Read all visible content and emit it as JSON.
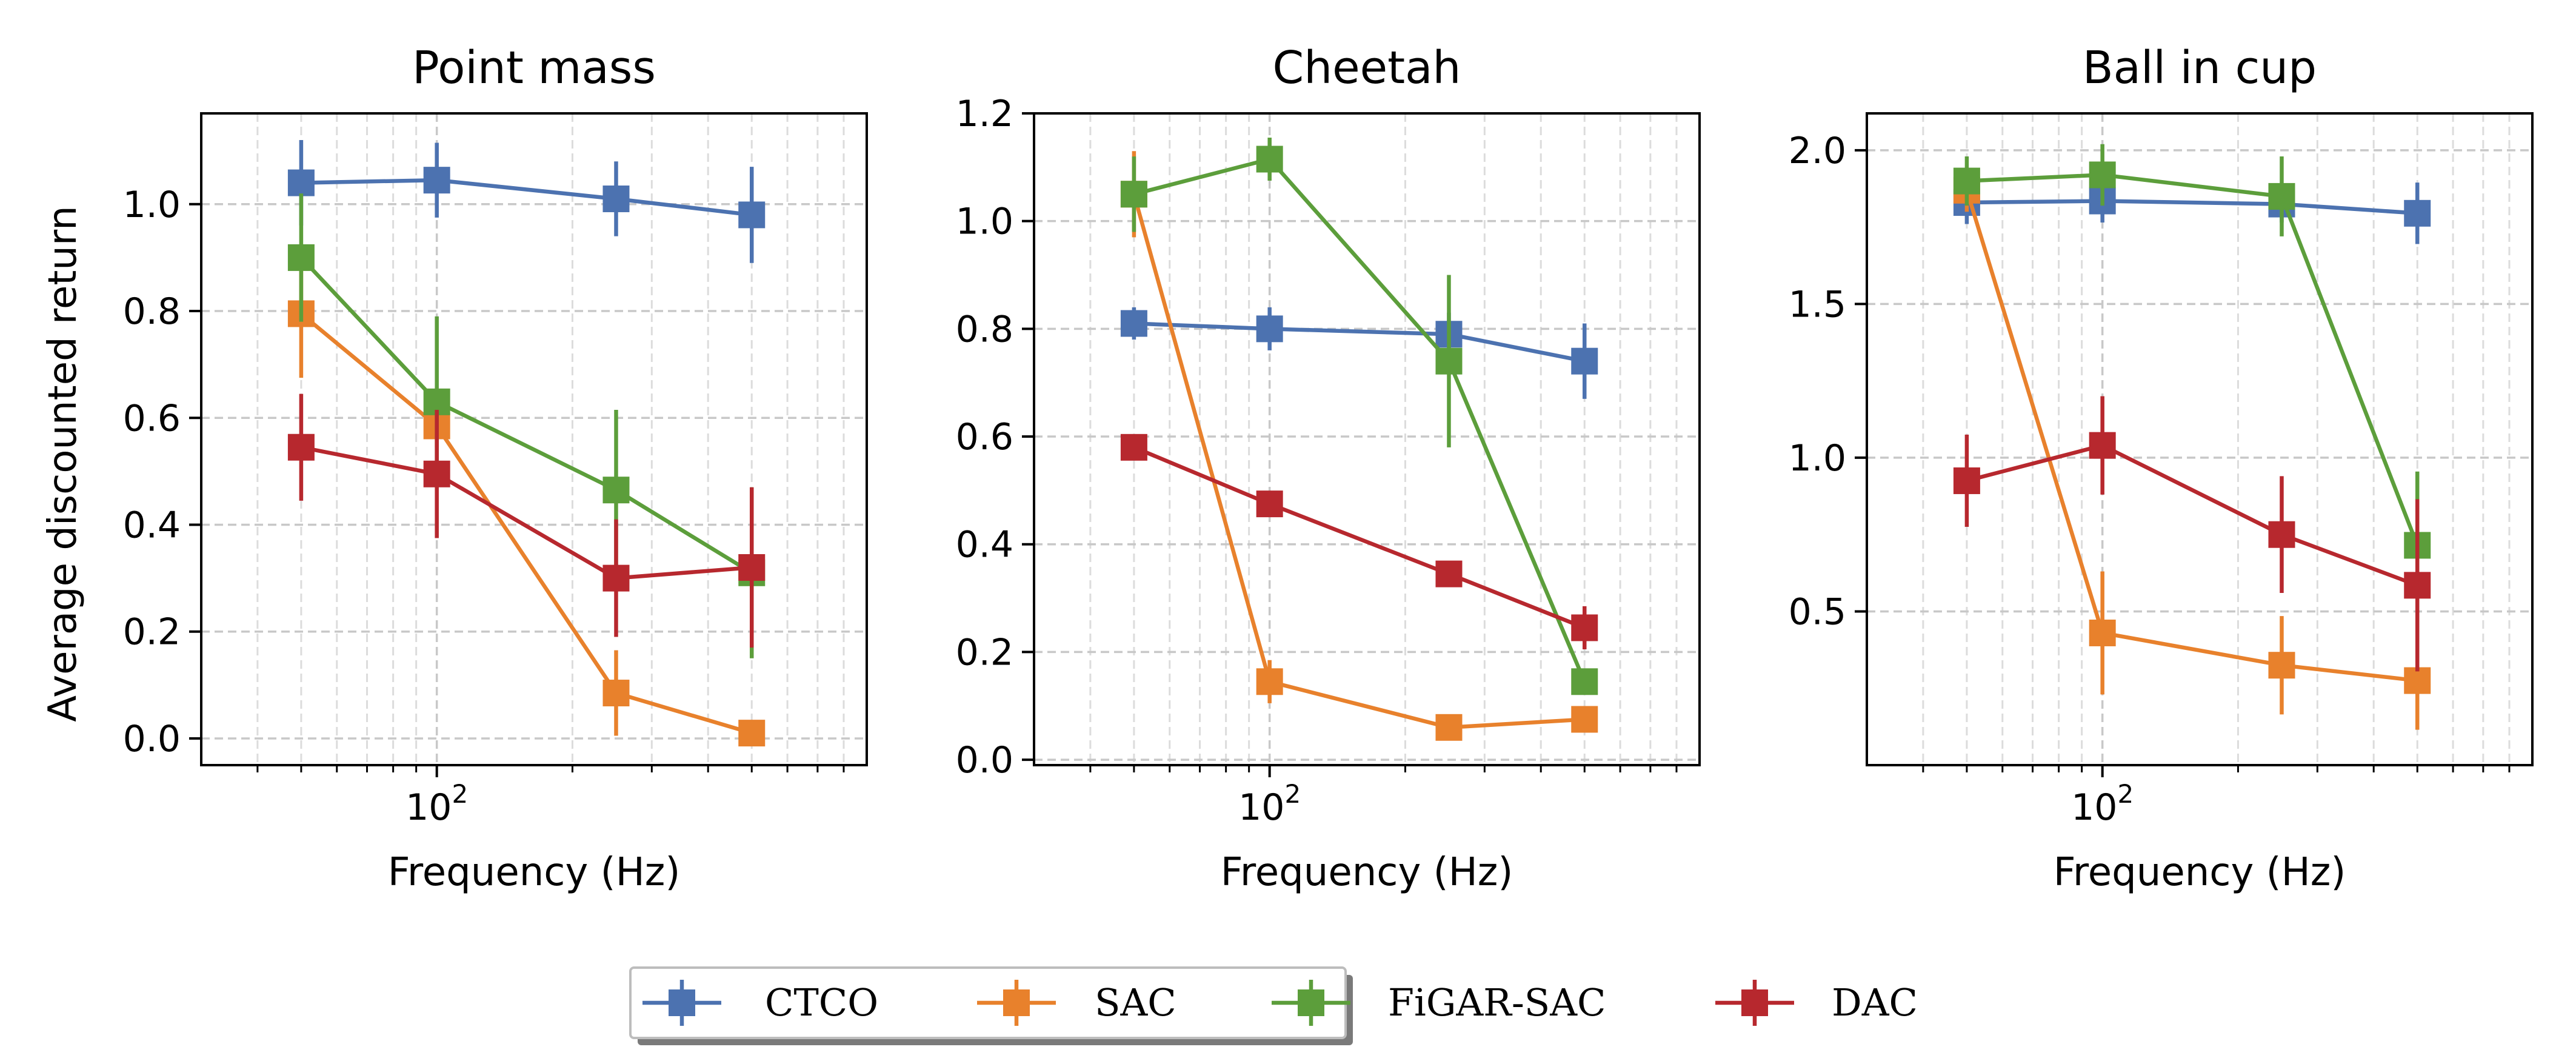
{
  "figure": {
    "ylabel": "Average discounted return"
  },
  "colors": {
    "CTCO": "#4c72b0",
    "SAC": "#e8812c",
    "FiGAR-SAC": "#5c9e3b",
    "DAC": "#b7282e"
  },
  "legend": {
    "placement": "bottom-center",
    "entries": [
      "CTCO",
      "SAC",
      "FiGAR-SAC",
      "DAC"
    ]
  },
  "chart_data": [
    {
      "type": "line",
      "title": "Point mass",
      "xlabel": "Frequency (Hz)",
      "ylabel": "Average discounted return",
      "xscale": "log",
      "xlim": [
        30,
        900
      ],
      "ylim": [
        -0.05,
        1.17
      ],
      "yticks": [
        0.0,
        0.2,
        0.4,
        0.6,
        0.8,
        1.0
      ],
      "ytick_labels": [
        "0.0",
        "0.2",
        "0.4",
        "0.6",
        "0.8",
        "1.0"
      ],
      "xticks": [
        100
      ],
      "xtick_labels": [
        "10^2"
      ],
      "grid": true,
      "x": [
        50,
        100,
        250,
        500
      ],
      "series": [
        {
          "name": "CTCO",
          "values": [
            1.04,
            1.045,
            1.01,
            0.98
          ],
          "err": [
            0.08,
            0.07,
            0.07,
            0.09
          ]
        },
        {
          "name": "SAC",
          "values": [
            0.795,
            0.585,
            0.085,
            0.01
          ],
          "err": [
            0.12,
            0.04,
            0.08,
            0.01
          ]
        },
        {
          "name": "FiGAR-SAC",
          "values": [
            0.9,
            0.63,
            0.465,
            0.31
          ],
          "err": [
            0.12,
            0.16,
            0.15,
            0.16
          ]
        },
        {
          "name": "DAC",
          "values": [
            0.545,
            0.495,
            0.3,
            0.32
          ],
          "err": [
            0.1,
            0.12,
            0.11,
            0.15
          ]
        }
      ]
    },
    {
      "type": "line",
      "title": "Cheetah",
      "xlabel": "Frequency (Hz)",
      "ylabel": "",
      "xscale": "log",
      "xlim": [
        30,
        900
      ],
      "ylim": [
        -0.01,
        1.2
      ],
      "yticks": [
        0.0,
        0.2,
        0.4,
        0.6,
        0.8,
        1.0,
        1.2
      ],
      "ytick_labels": [
        "0.0",
        "0.2",
        "0.4",
        "0.6",
        "0.8",
        "1.0",
        "1.2"
      ],
      "xticks": [
        100
      ],
      "xtick_labels": [
        "10^2"
      ],
      "grid": true,
      "x": [
        50,
        100,
        250,
        500
      ],
      "series": [
        {
          "name": "CTCO",
          "values": [
            0.81,
            0.8,
            0.79,
            0.74
          ],
          "err": [
            0.03,
            0.04,
            0.04,
            0.07
          ]
        },
        {
          "name": "SAC",
          "values": [
            1.05,
            0.145,
            0.06,
            0.075
          ],
          "err": [
            0.08,
            0.04,
            0.02,
            0.02
          ]
        },
        {
          "name": "FiGAR-SAC",
          "values": [
            1.05,
            1.115,
            0.74,
            0.145
          ],
          "err": [
            0.07,
            0.04,
            0.16,
            0.02
          ]
        },
        {
          "name": "DAC",
          "values": [
            0.58,
            0.475,
            0.345,
            0.245
          ],
          "err": [
            0.02,
            0.02,
            0.02,
            0.04
          ]
        }
      ]
    },
    {
      "type": "line",
      "title": "Ball in cup",
      "xlabel": "Frequency (Hz)",
      "ylabel": "",
      "xscale": "log",
      "xlim": [
        30,
        900
      ],
      "ylim": [
        0.0,
        2.12
      ],
      "yticks": [
        0.5,
        1.0,
        1.5,
        2.0
      ],
      "ytick_labels": [
        "0.5",
        "1.0",
        "1.5",
        "2.0"
      ],
      "xticks": [
        100
      ],
      "xtick_labels": [
        "10^2"
      ],
      "grid": true,
      "x": [
        50,
        100,
        250,
        500
      ],
      "series": [
        {
          "name": "CTCO",
          "values": [
            1.83,
            1.835,
            1.825,
            1.795
          ],
          "err": [
            0.07,
            0.07,
            0.06,
            0.1
          ]
        },
        {
          "name": "SAC",
          "values": [
            1.87,
            0.43,
            0.325,
            0.275
          ],
          "err": [
            0.07,
            0.2,
            0.16,
            0.16
          ]
        },
        {
          "name": "FiGAR-SAC",
          "values": [
            1.9,
            1.92,
            1.85,
            0.715
          ],
          "err": [
            0.08,
            0.1,
            0.13,
            0.24
          ]
        },
        {
          "name": "DAC",
          "values": [
            0.925,
            1.04,
            0.75,
            0.585
          ],
          "err": [
            0.15,
            0.16,
            0.19,
            0.28
          ]
        }
      ]
    }
  ]
}
